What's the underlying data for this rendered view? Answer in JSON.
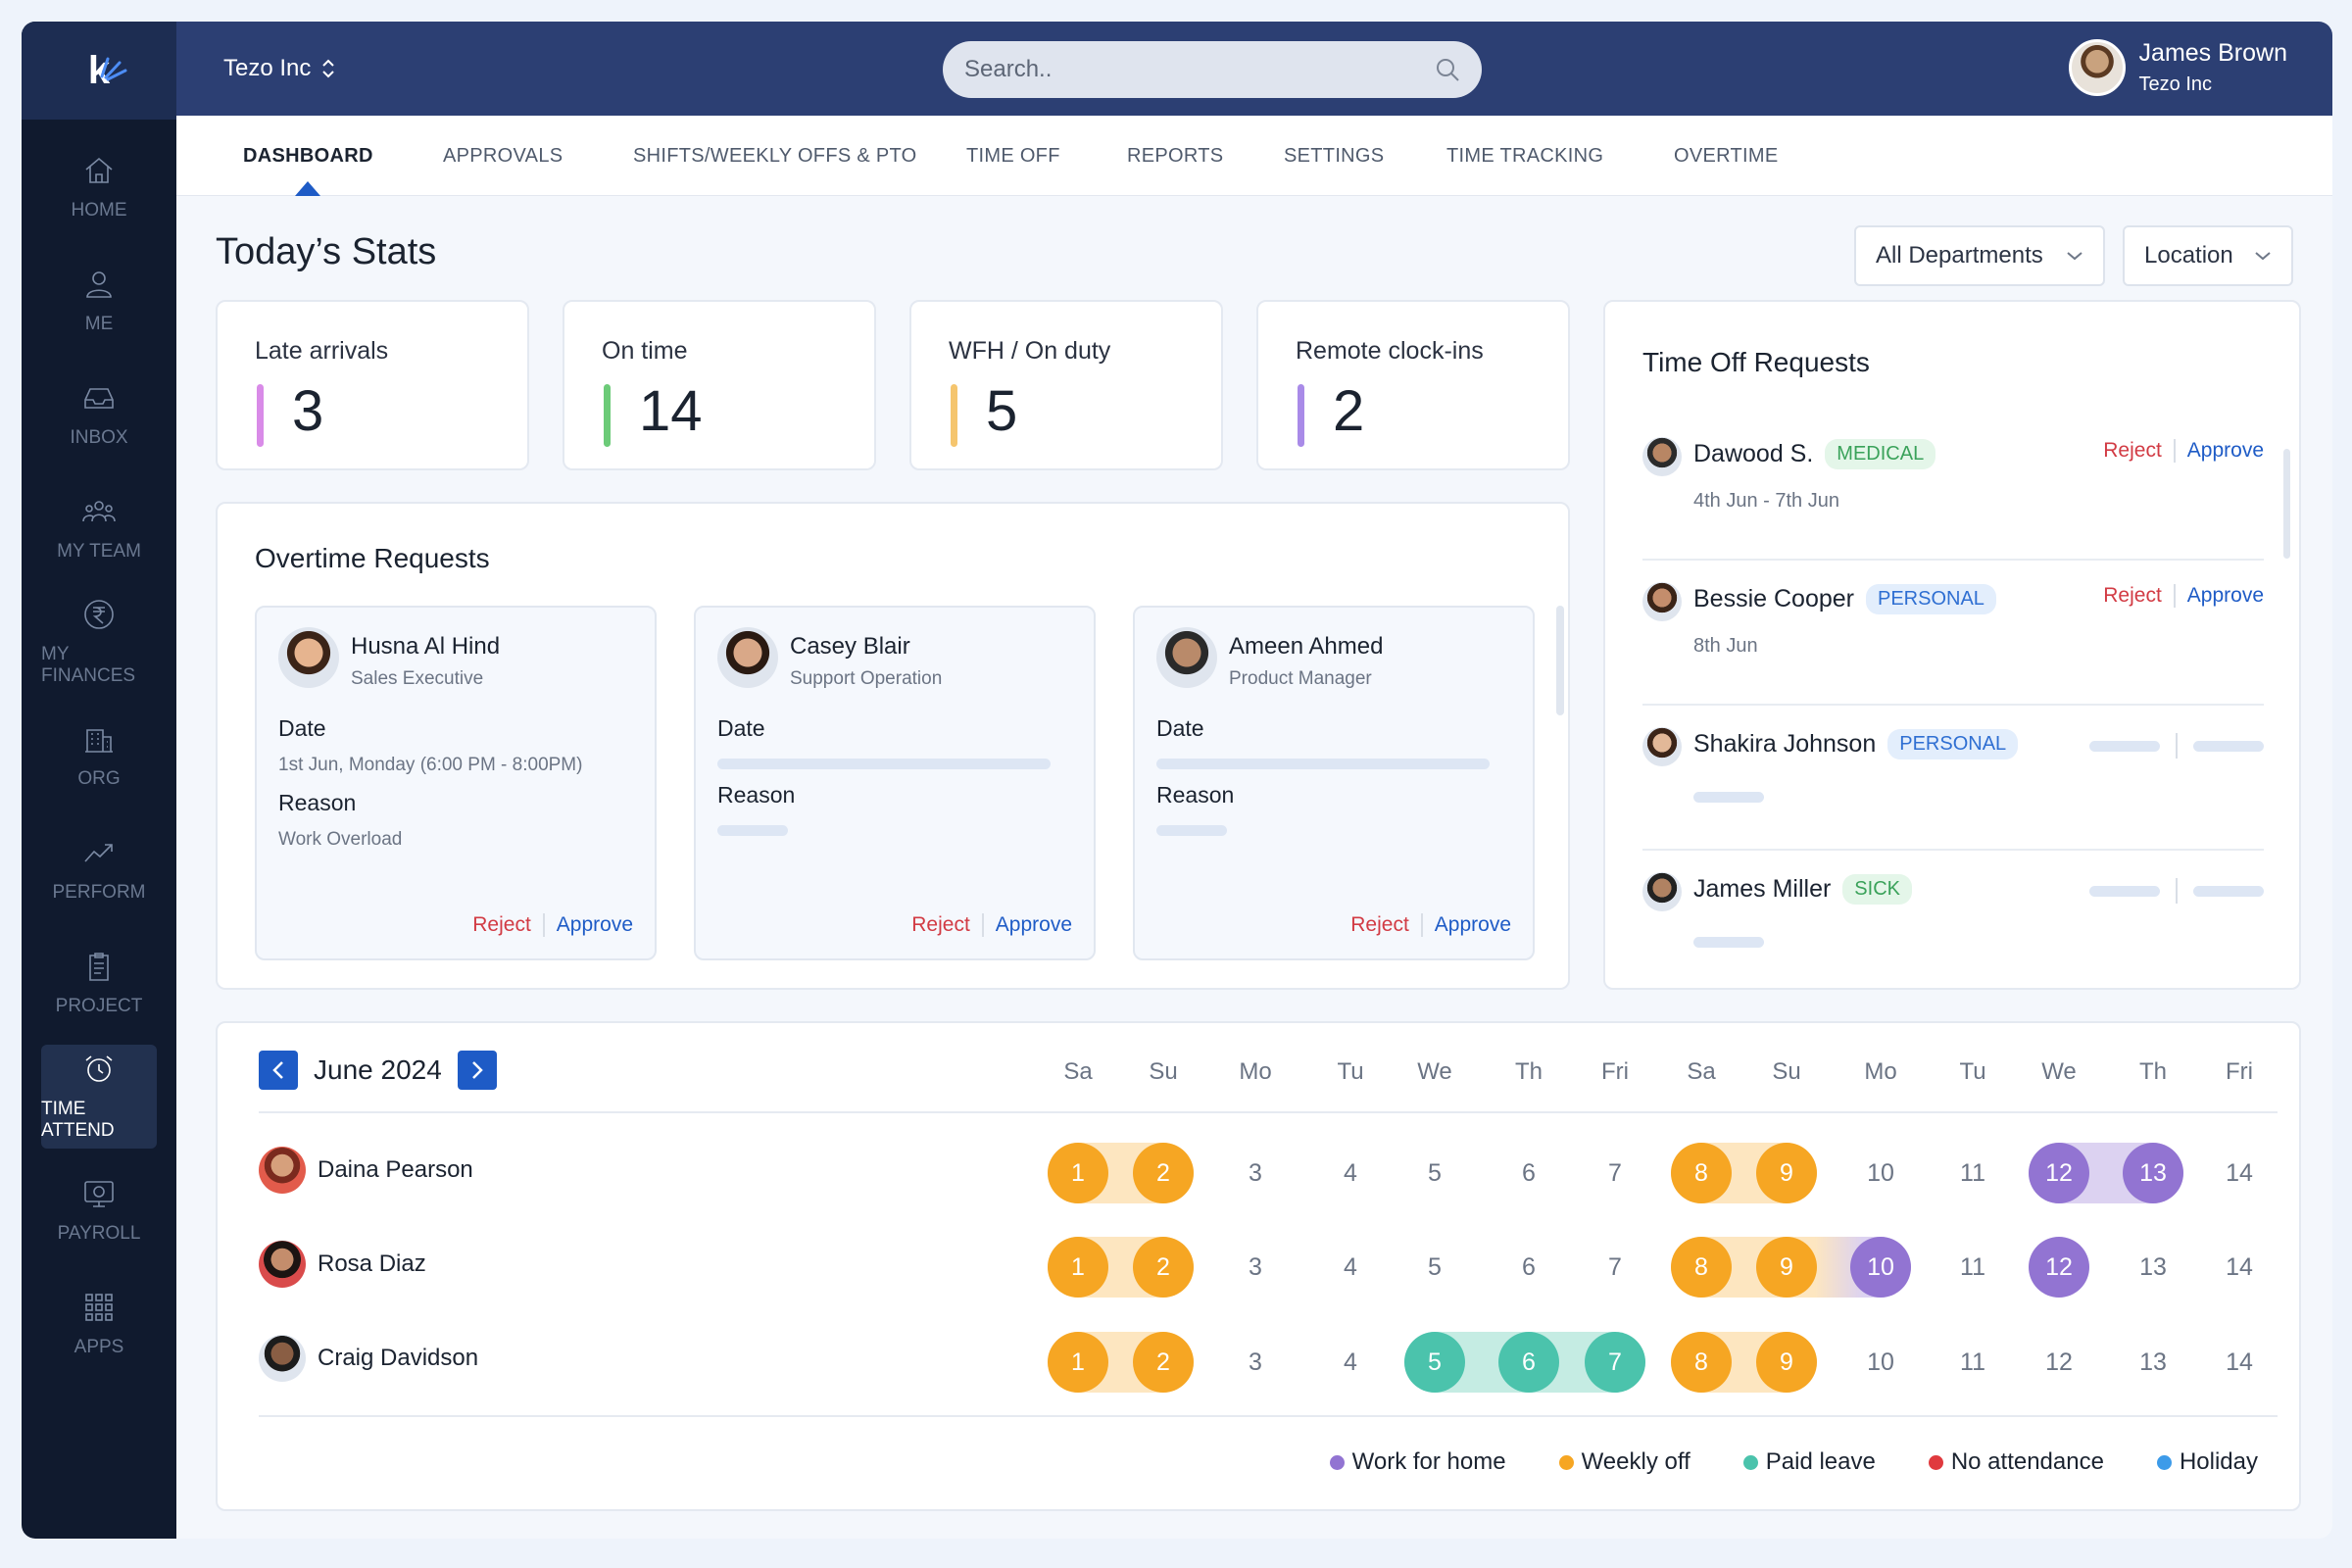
{
  "app": {
    "company": "Tezo Inc",
    "search_placeholder": "Search.."
  },
  "user": {
    "name": "James Brown",
    "company": "Tezo Inc"
  },
  "colors": {
    "sidebar": "#101a2e",
    "topbar": "#2c3f73",
    "accent": "#1e5bc6",
    "reject": "#d23b44",
    "orange": "#f6a623",
    "purple": "#9274d2",
    "teal": "#4bc3ac",
    "red": "#e03a3e",
    "blue": "#3d9be9"
  },
  "sidebar": {
    "items": [
      {
        "label": "HOME",
        "icon": "home-icon"
      },
      {
        "label": "ME",
        "icon": "user-icon"
      },
      {
        "label": "INBOX",
        "icon": "inbox-icon"
      },
      {
        "label": "MY TEAM",
        "icon": "team-icon"
      },
      {
        "label": "MY FINANCES",
        "icon": "rupee-icon"
      },
      {
        "label": "ORG",
        "icon": "building-icon"
      },
      {
        "label": "PERFORM",
        "icon": "trend-icon"
      },
      {
        "label": "PROJECT",
        "icon": "clipboard-icon"
      },
      {
        "label": "TIME ATTEND",
        "icon": "alarm-clock-icon",
        "active": true
      },
      {
        "label": "PAYROLL",
        "icon": "payroll-icon"
      },
      {
        "label": "APPS",
        "icon": "grid-icon"
      }
    ]
  },
  "tabs": [
    {
      "label": "DASHBOARD",
      "active": true
    },
    {
      "label": "APPROVALS"
    },
    {
      "label": "SHIFTS/WEEKLY OFFS & PTO"
    },
    {
      "label": "TIME OFF"
    },
    {
      "label": "REPORTS"
    },
    {
      "label": "SETTINGS"
    },
    {
      "label": "TIME TRACKING"
    },
    {
      "label": "OVERTIME"
    }
  ],
  "stats": {
    "title": "Today’s Stats",
    "filters": {
      "department": "All Departments",
      "location": "Location"
    },
    "cards": [
      {
        "label": "Late arrivals",
        "value": "3",
        "color": "#d98be8"
      },
      {
        "label": "On time",
        "value": "14",
        "color": "#6ccb78"
      },
      {
        "label": "WFH / On duty",
        "value": "5",
        "color": "#f5c56e"
      },
      {
        "label": "Remote clock-ins",
        "value": "2",
        "color": "#a98be8"
      }
    ]
  },
  "overtime": {
    "title": "Overtime Requests",
    "date_label": "Date",
    "reason_label": "Reason",
    "reject": "Reject",
    "approve": "Approve",
    "requests": [
      {
        "name": "Husna Al Hind",
        "role": "Sales Executive",
        "date": "1st Jun, Monday (6:00 PM - 8:00PM)",
        "reason": "Work Overload"
      },
      {
        "name": "Casey Blair",
        "role": "Support Operation"
      },
      {
        "name": "Ameen Ahmed",
        "role": "Product Manager"
      }
    ]
  },
  "timeoff": {
    "title": "Time Off Requests",
    "reject": "Reject",
    "approve": "Approve",
    "requests": [
      {
        "name": "Dawood S.",
        "type": "MEDICAL",
        "dates": "4th Jun - 7th Jun"
      },
      {
        "name": "Bessie Cooper",
        "type": "PERSONAL",
        "dates": "8th Jun"
      },
      {
        "name": "Shakira Johnson",
        "type": "PERSONAL"
      },
      {
        "name": "James Miller",
        "type": "SICK"
      }
    ]
  },
  "calendar": {
    "month": "June 2024",
    "days": [
      {
        "wd": "Sa",
        "d": "1"
      },
      {
        "wd": "Su",
        "d": "2"
      },
      {
        "wd": "Mo",
        "d": "3"
      },
      {
        "wd": "Tu",
        "d": "4"
      },
      {
        "wd": "We",
        "d": "5"
      },
      {
        "wd": "Th",
        "d": "6"
      },
      {
        "wd": "Fri",
        "d": "7"
      },
      {
        "wd": "Sa",
        "d": "8"
      },
      {
        "wd": "Su",
        "d": "9"
      },
      {
        "wd": "Mo",
        "d": "10"
      },
      {
        "wd": "Tu",
        "d": "11"
      },
      {
        "wd": "We",
        "d": "12"
      },
      {
        "wd": "Th",
        "d": "13"
      },
      {
        "wd": "Fri",
        "d": "14"
      }
    ],
    "employees": [
      {
        "name": "Daina Pearson",
        "marks": {
          "1": "weekly",
          "2": "weekly",
          "8": "weekly",
          "9": "weekly",
          "12": "wfh",
          "13": "wfh"
        }
      },
      {
        "name": "Rosa Diaz",
        "marks": {
          "1": "weekly",
          "2": "weekly",
          "8": "weekly",
          "9": "weekly",
          "10": "wfh",
          "12": "wfh"
        }
      },
      {
        "name": "Craig Davidson",
        "marks": {
          "1": "weekly",
          "2": "weekly",
          "5": "paid",
          "6": "paid",
          "7": "paid",
          "8": "weekly",
          "9": "weekly"
        }
      }
    ],
    "legend": [
      {
        "label": "Work for home",
        "color": "#9274d2"
      },
      {
        "label": "Weekly off",
        "color": "#f6a623"
      },
      {
        "label": "Paid leave",
        "color": "#4bc3ac"
      },
      {
        "label": "No attendance",
        "color": "#e03a3e"
      },
      {
        "label": "Holiday",
        "color": "#3d9be9"
      }
    ]
  }
}
